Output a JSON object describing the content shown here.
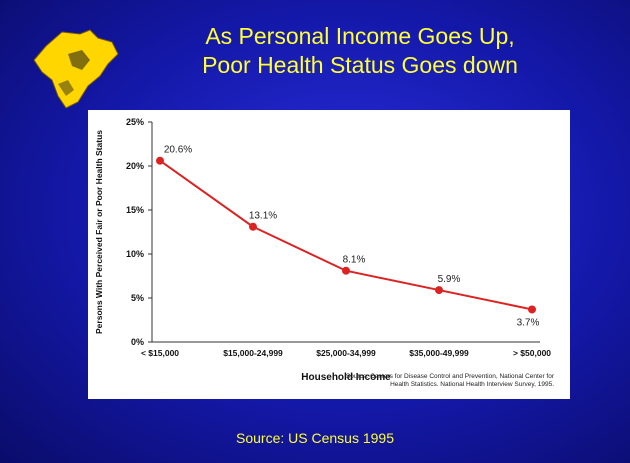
{
  "slide": {
    "title_line1": "As Personal  Income Goes Up,",
    "title_line2": "Poor Health Status Goes down",
    "footer_source": "Source:  US Census 1995"
  },
  "colors": {
    "background": "#1418a8",
    "title": "#ffff33",
    "series_line": "#dd2222",
    "island": "#ffd600"
  },
  "chart_data": {
    "type": "line",
    "categories": [
      "< $15,000",
      "$15,000-24,999",
      "$25,000-34,999",
      "$35,000-49,999",
      "> $50,000"
    ],
    "series": [
      {
        "values": [
          20.6,
          13.1,
          8.1,
          5.9,
          3.7
        ]
      }
    ],
    "data_labels": [
      "20.6%",
      "13.1%",
      "8.1%",
      "5.9%",
      "3.7%"
    ],
    "xlabel": "Household Income",
    "ylabel": "Persons With Perceived Fair or Poor Health Status",
    "ylim": [
      0,
      25
    ],
    "yticks": [
      0,
      5,
      10,
      15,
      20,
      25
    ],
    "ytick_labels": [
      "0%",
      "5%",
      "10%",
      "15%",
      "20%",
      "25%"
    ],
    "grid": false,
    "source_note_line1": "Source: Centers for Disease Control and Prevention, National Center for",
    "source_note_line2": "Health Statistics. National Health Interview Survey, 1995."
  }
}
